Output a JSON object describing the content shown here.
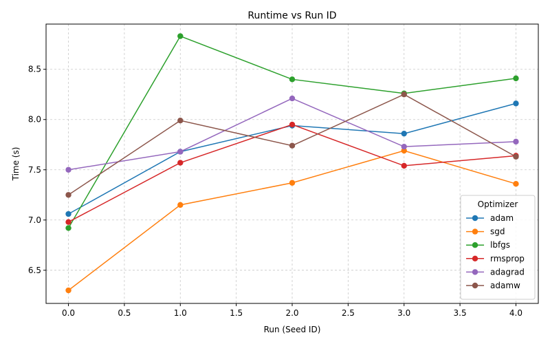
{
  "chart_data": {
    "type": "line",
    "title": "Runtime vs Run ID",
    "xlabel": "Run (Seed ID)",
    "ylabel": "Time (s)",
    "xlim": [
      -0.2,
      4.2
    ],
    "ylim": [
      6.17,
      8.95
    ],
    "xticks": [
      0.0,
      0.5,
      1.0,
      1.5,
      2.0,
      2.5,
      3.0,
      3.5,
      4.0
    ],
    "xtick_labels": [
      "0.0",
      "0.5",
      "1.0",
      "1.5",
      "2.0",
      "2.5",
      "3.0",
      "3.5",
      "4.0"
    ],
    "yticks": [
      6.5,
      7.0,
      7.5,
      8.0,
      8.5
    ],
    "ytick_labels": [
      "6.5",
      "7.0",
      "7.5",
      "8.0",
      "8.5"
    ],
    "grid": true,
    "legend": {
      "title": "Optimizer",
      "position": "lower-right"
    },
    "x": [
      0,
      1,
      2,
      3,
      4
    ],
    "series": [
      {
        "name": "adam",
        "color": "#1f77b4",
        "values": [
          7.06,
          7.68,
          7.94,
          7.86,
          8.16
        ]
      },
      {
        "name": "sgd",
        "color": "#ff7f0e",
        "values": [
          6.3,
          7.15,
          7.37,
          7.69,
          7.36
        ]
      },
      {
        "name": "lbfgs",
        "color": "#2ca02c",
        "values": [
          6.92,
          8.83,
          8.4,
          8.26,
          8.41
        ]
      },
      {
        "name": "rmsprop",
        "color": "#d62728",
        "values": [
          6.98,
          7.57,
          7.95,
          7.54,
          7.64
        ]
      },
      {
        "name": "adagrad",
        "color": "#9467bd",
        "values": [
          7.5,
          7.68,
          8.21,
          7.73,
          7.78
        ]
      },
      {
        "name": "adamw",
        "color": "#8c564b",
        "values": [
          7.25,
          7.99,
          7.74,
          8.25,
          7.63
        ]
      }
    ]
  }
}
